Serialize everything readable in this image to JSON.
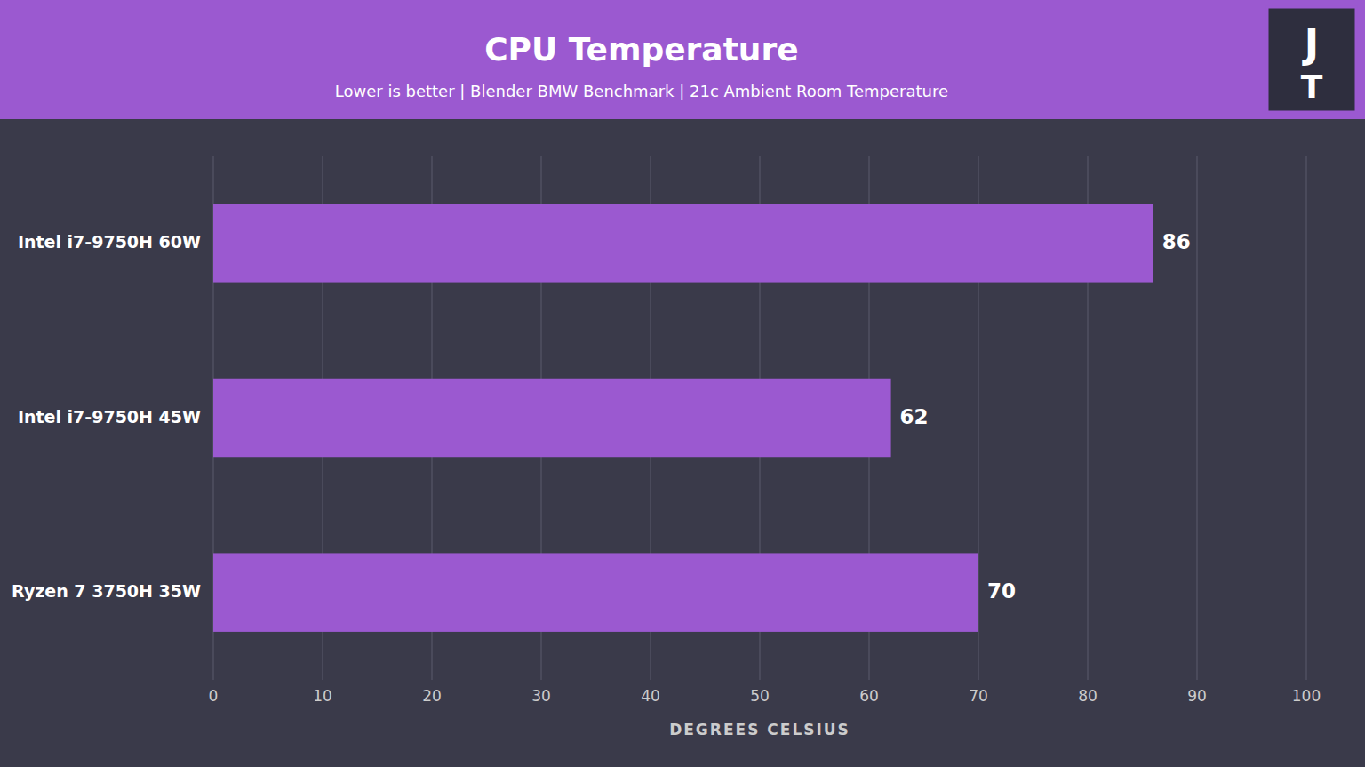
{
  "chart_data": {
    "type": "bar",
    "orientation": "horizontal",
    "title": "CPU Temperature",
    "subtitle": "Lower is better | Blender BMW Benchmark | 21c Ambient Room Temperature",
    "categories": [
      "Intel i7-9750H 60W",
      "Intel i7-9750H 45W",
      "Ryzen 7 3750H 35W"
    ],
    "values": [
      86,
      62,
      70
    ],
    "color": "#9b59d0",
    "xlabel": "DEGREES CELSIUS",
    "xlim": [
      0,
      100
    ],
    "xticks": [
      0,
      10,
      20,
      30,
      40,
      50,
      60,
      70,
      80,
      90,
      100
    ],
    "grid": true,
    "data_labels": true,
    "annotations": [
      "J",
      "T"
    ]
  }
}
